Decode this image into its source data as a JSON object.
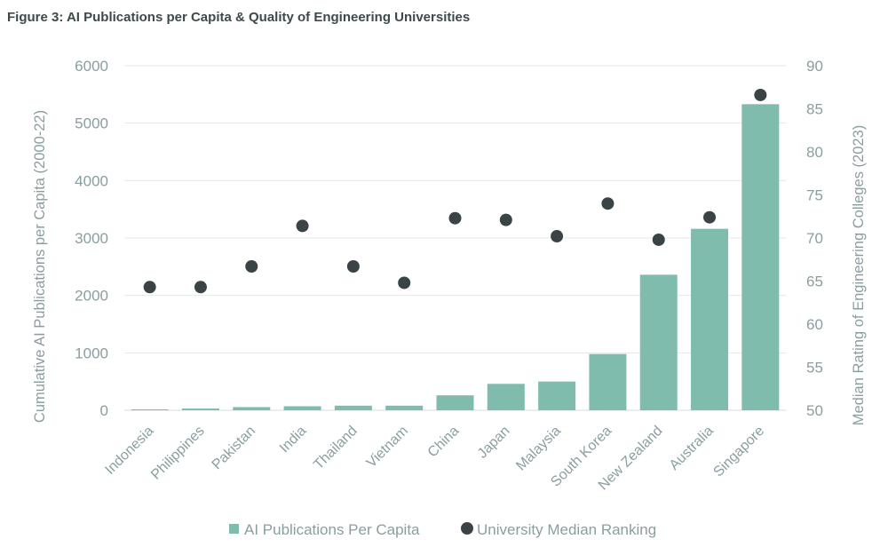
{
  "chart_data": {
    "type": "bar",
    "title": "Figure 3: AI Publications per Capita & Quality of Engineering Universities",
    "categories": [
      "Indonesia",
      "Philippines",
      "Pakistan",
      "India",
      "Thailand",
      "Vietnam",
      "China",
      "Japan",
      "Malaysia",
      "South Korea",
      "New Zealand",
      "Australia",
      "Singapore"
    ],
    "series": [
      {
        "name": "AI Publications Per Capita",
        "kind": "bar",
        "axis": "left",
        "color": "#7fbcad",
        "values": [
          15,
          30,
          55,
          70,
          80,
          80,
          260,
          460,
          500,
          980,
          2360,
          3160,
          5330
        ]
      },
      {
        "name": "University Median Ranking",
        "kind": "scatter",
        "axis": "right",
        "color": "#3a4446",
        "values": [
          64.3,
          64.3,
          66.7,
          71.4,
          66.7,
          64.8,
          72.3,
          72.1,
          70.2,
          74.0,
          69.8,
          72.4,
          86.6
        ]
      }
    ],
    "ylabel": "Cumulative AI Publications per Capita (2000-22)",
    "ylim": [
      0,
      6000
    ],
    "yticks": [
      "0",
      "1000",
      "2000",
      "3000",
      "4000",
      "5000",
      "6000"
    ],
    "y2label": "Median Rating of Engineering Colleges (2023)",
    "y2lim": [
      50,
      90
    ],
    "y2ticks": [
      "50",
      "55",
      "60",
      "65",
      "70",
      "75",
      "80",
      "85",
      "90"
    ],
    "grid": true,
    "legend_position": "bottom-center"
  }
}
